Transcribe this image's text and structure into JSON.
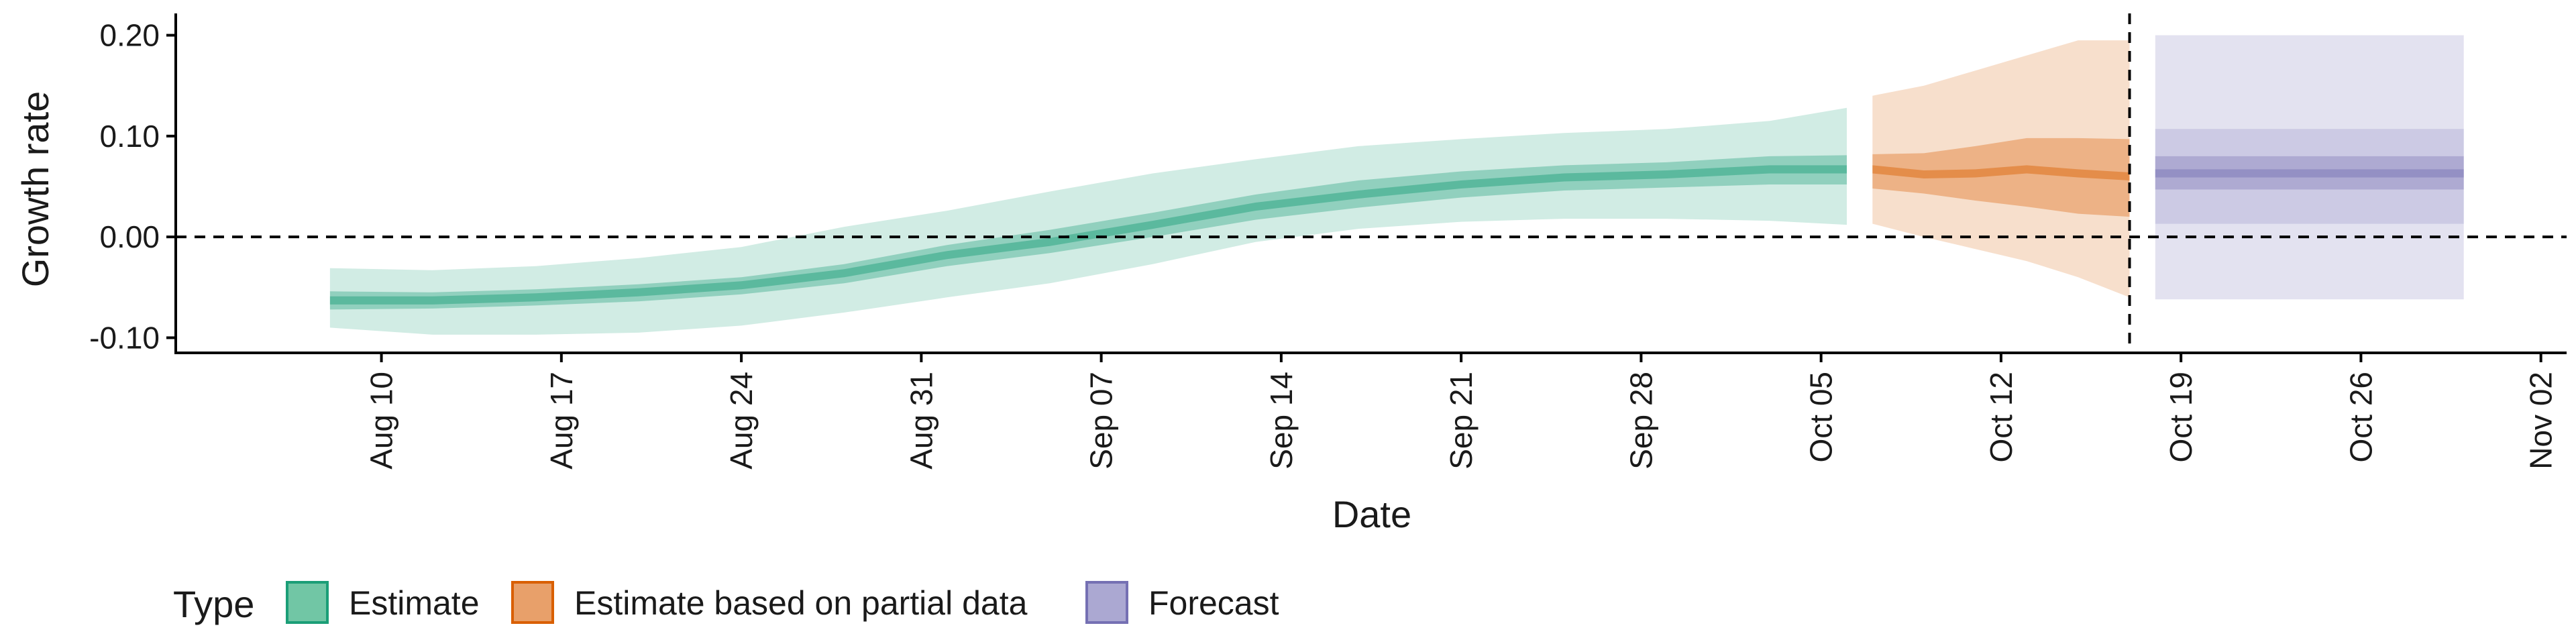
{
  "chart_data": {
    "type": "area",
    "title": "",
    "xlabel": "Date",
    "ylabel": "Growth rate",
    "ylim": [
      -0.115,
      0.215
    ],
    "xlim": [
      "2020-08-02",
      "2020-11-03"
    ],
    "yticks": [
      {
        "value": 0.2,
        "label": "0.20"
      },
      {
        "value": 0.1,
        "label": "0.10"
      },
      {
        "value": 0.0,
        "label": "0.00"
      },
      {
        "value": -0.1,
        "label": "-0.10"
      }
    ],
    "xticks": [
      {
        "date": "2020-08-10",
        "label": "Aug 10"
      },
      {
        "date": "2020-08-17",
        "label": "Aug 17"
      },
      {
        "date": "2020-08-24",
        "label": "Aug 24"
      },
      {
        "date": "2020-08-31",
        "label": "Aug 31"
      },
      {
        "date": "2020-09-07",
        "label": "Sep 07"
      },
      {
        "date": "2020-09-14",
        "label": "Sep 14"
      },
      {
        "date": "2020-09-21",
        "label": "Sep 21"
      },
      {
        "date": "2020-09-28",
        "label": "Sep 28"
      },
      {
        "date": "2020-10-05",
        "label": "Oct 05"
      },
      {
        "date": "2020-10-12",
        "label": "Oct 12"
      },
      {
        "date": "2020-10-19",
        "label": "Oct 19"
      },
      {
        "date": "2020-10-26",
        "label": "Oct 26"
      },
      {
        "date": "2020-11-02",
        "label": "Nov 02"
      }
    ],
    "reference_lines": {
      "horizontal_y": 0.0,
      "vertical_date": "2020-10-17",
      "style": "dashed"
    },
    "grid": false,
    "legend": {
      "title": "Type",
      "placement": "bottom-left",
      "entries": [
        {
          "label": "Estimate",
          "fill": "#71c6a5",
          "border": "#1b9e77"
        },
        {
          "label": "Estimate based on partial data",
          "fill": "#e8a06a",
          "border": "#d95f02"
        },
        {
          "label": "Forecast",
          "fill": "#aba8d2",
          "border": "#7570b3"
        }
      ]
    },
    "series": [
      {
        "name": "Estimate",
        "color": "#1b9e77",
        "x": [
          "2020-08-08",
          "2020-08-12",
          "2020-08-16",
          "2020-08-20",
          "2020-08-24",
          "2020-08-28",
          "2020-09-01",
          "2020-09-05",
          "2020-09-09",
          "2020-09-13",
          "2020-09-17",
          "2020-09-21",
          "2020-09-25",
          "2020-09-29",
          "2020-10-03",
          "2020-10-06"
        ],
        "median": [
          -0.063,
          -0.063,
          -0.06,
          -0.055,
          -0.048,
          -0.036,
          -0.018,
          -0.005,
          0.012,
          0.03,
          0.042,
          0.052,
          0.059,
          0.062,
          0.067,
          0.067
        ],
        "lower_50": [
          -0.072,
          -0.071,
          -0.068,
          -0.064,
          -0.057,
          -0.046,
          -0.029,
          -0.016,
          0.0,
          0.017,
          0.029,
          0.039,
          0.046,
          0.049,
          0.052,
          0.052
        ],
        "upper_50": [
          -0.054,
          -0.055,
          -0.052,
          -0.047,
          -0.04,
          -0.027,
          -0.008,
          0.007,
          0.024,
          0.042,
          0.056,
          0.065,
          0.071,
          0.074,
          0.08,
          0.081
        ],
        "lower_90": [
          -0.09,
          -0.097,
          -0.097,
          -0.095,
          -0.088,
          -0.075,
          -0.06,
          -0.046,
          -0.027,
          -0.005,
          0.008,
          0.015,
          0.018,
          0.018,
          0.016,
          0.012
        ],
        "upper_90": [
          -0.031,
          -0.033,
          -0.029,
          -0.021,
          -0.01,
          0.01,
          0.026,
          0.045,
          0.063,
          0.077,
          0.09,
          0.097,
          0.103,
          0.107,
          0.115,
          0.128
        ]
      },
      {
        "name": "Estimate based on partial data",
        "color": "#d95f02",
        "x": [
          "2020-10-07",
          "2020-10-09",
          "2020-10-11",
          "2020-10-13",
          "2020-10-15",
          "2020-10-17"
        ],
        "median": [
          0.067,
          0.062,
          0.063,
          0.067,
          0.063,
          0.06
        ],
        "lower_50": [
          0.048,
          0.043,
          0.036,
          0.03,
          0.023,
          0.02
        ],
        "upper_50": [
          0.082,
          0.083,
          0.09,
          0.098,
          0.098,
          0.097
        ],
        "lower_90": [
          0.013,
          0.0,
          -0.012,
          -0.024,
          -0.04,
          -0.06
        ],
        "upper_90": [
          0.14,
          0.15,
          0.165,
          0.18,
          0.195,
          0.195
        ]
      },
      {
        "name": "Forecast",
        "color": "#7570b3",
        "x": [
          "2020-10-18",
          "2020-10-30"
        ],
        "median": [
          0.063,
          0.063
        ],
        "lower_50": [
          0.047,
          0.047
        ],
        "upper_50": [
          0.08,
          0.08
        ],
        "lower_90": [
          0.013,
          0.013
        ],
        "upper_90": [
          0.107,
          0.107
        ],
        "lower_95": [
          -0.062,
          -0.062
        ],
        "upper_95": [
          0.2,
          0.2
        ]
      }
    ]
  }
}
